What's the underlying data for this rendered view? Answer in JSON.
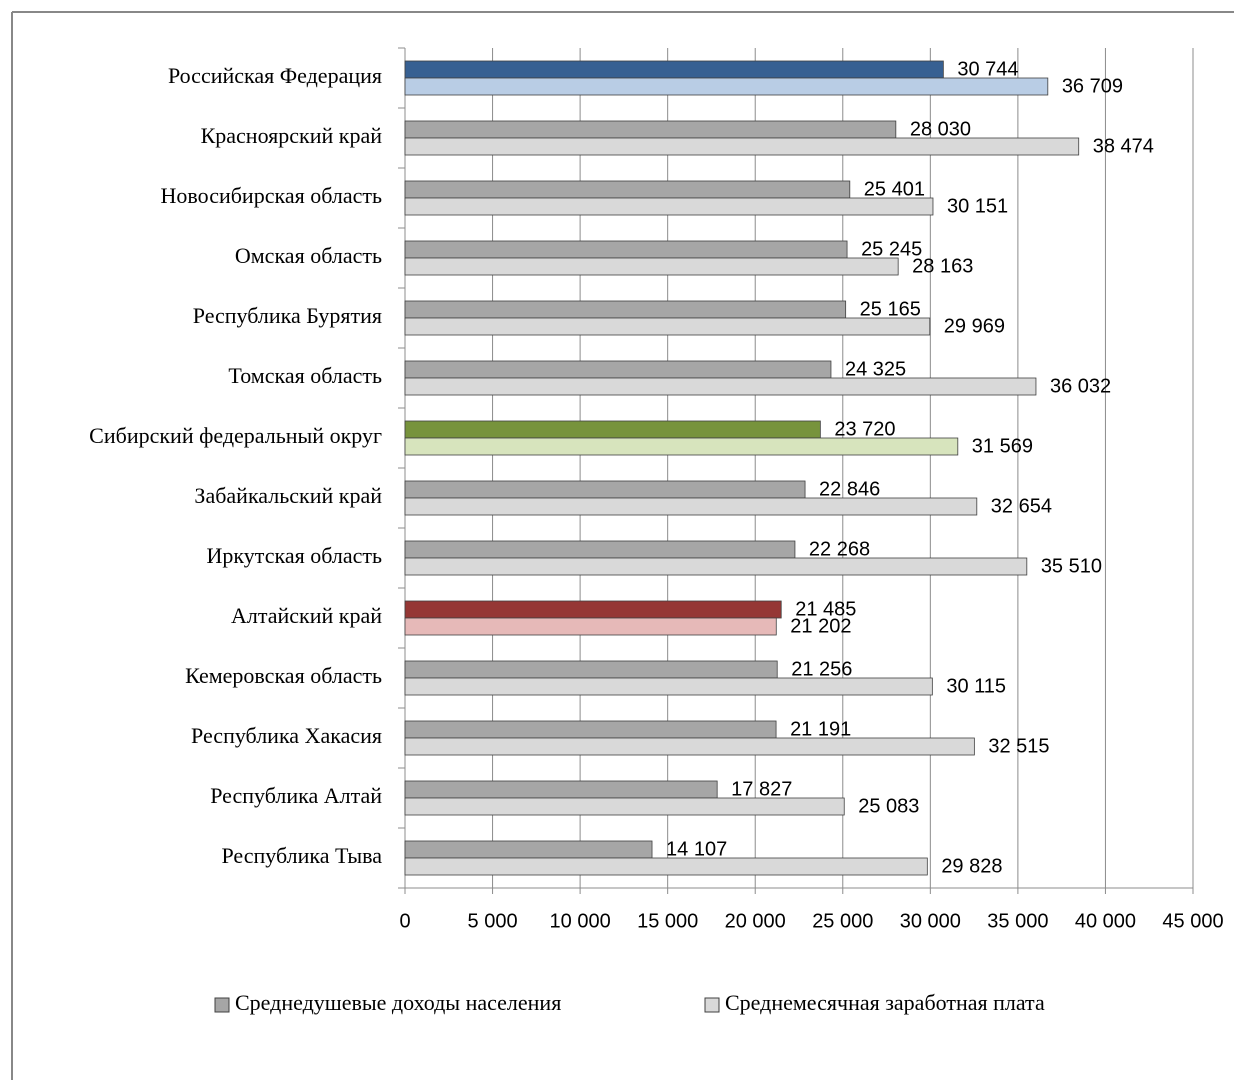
{
  "chart_data": {
    "type": "bar",
    "orientation": "horizontal",
    "categories": [
      "Российская Федерация",
      "Красноярский край",
      "Новосибирская область",
      "Омская область",
      "Республика Бурятия",
      "Томская область",
      "Сибирский федеральный округ",
      "Забайкальский край",
      "Иркутская область",
      "Алтайский край",
      "Кемеровская область",
      "Республика Хакасия",
      "Республика Алтай",
      "Республика Тыва"
    ],
    "series": [
      {
        "name": "Среднедушевые доходы населения",
        "color": "#a6a6a6",
        "point_colors": [
          "#376092",
          "#a6a6a6",
          "#a6a6a6",
          "#a6a6a6",
          "#a6a6a6",
          "#a6a6a6",
          "#77933c",
          "#a6a6a6",
          "#a6a6a6",
          "#953735",
          "#a6a6a6",
          "#a6a6a6",
          "#a6a6a6",
          "#a6a6a6"
        ],
        "values": [
          30744,
          28030,
          25401,
          25245,
          25165,
          24325,
          23720,
          22846,
          22268,
          21485,
          21256,
          21191,
          17827,
          14107
        ],
        "value_labels": [
          "30 744",
          "28 030",
          "25 401",
          "25 245",
          "25 165",
          "24 325",
          "23 720",
          "22 846",
          "22 268",
          "21 485",
          "21 256",
          "21 191",
          "17 827",
          "14 107"
        ]
      },
      {
        "name": "Среднемесячная заработная плата",
        "color": "#d9d9d9",
        "point_colors": [
          "#b9cde5",
          "#d9d9d9",
          "#d9d9d9",
          "#d9d9d9",
          "#d9d9d9",
          "#d9d9d9",
          "#d7e4bd",
          "#d9d9d9",
          "#d9d9d9",
          "#e6b9b8",
          "#d9d9d9",
          "#d9d9d9",
          "#d9d9d9",
          "#d9d9d9"
        ],
        "values": [
          36709,
          38474,
          30151,
          28163,
          29969,
          36032,
          31569,
          32654,
          35510,
          21202,
          30115,
          32515,
          25083,
          29828
        ],
        "value_labels": [
          "36 709",
          "38 474",
          "30 151",
          "28 163",
          "29 969",
          "36 032",
          "31 569",
          "32 654",
          "35 510",
          "21 202",
          "30 115",
          "32 515",
          "25 083",
          "29 828"
        ]
      }
    ],
    "xlim": [
      0,
      45000
    ],
    "xticks": [
      0,
      {
        "value": 5000,
        "label": "5 000"
      },
      {
        "value": 10000,
        "label": "10 000"
      },
      {
        "value": 15000,
        "label": "15 000"
      },
      {
        "value": 20000,
        "label": "20 000"
      },
      {
        "value": 25000,
        "label": "25 000"
      },
      {
        "value": 30000,
        "label": "30 000"
      },
      {
        "value": 35000,
        "label": "35 000"
      },
      {
        "value": 40000,
        "label": "40 000"
      },
      {
        "value": 45000,
        "label": "45 000"
      }
    ],
    "grid": true,
    "legend": "bottom"
  }
}
